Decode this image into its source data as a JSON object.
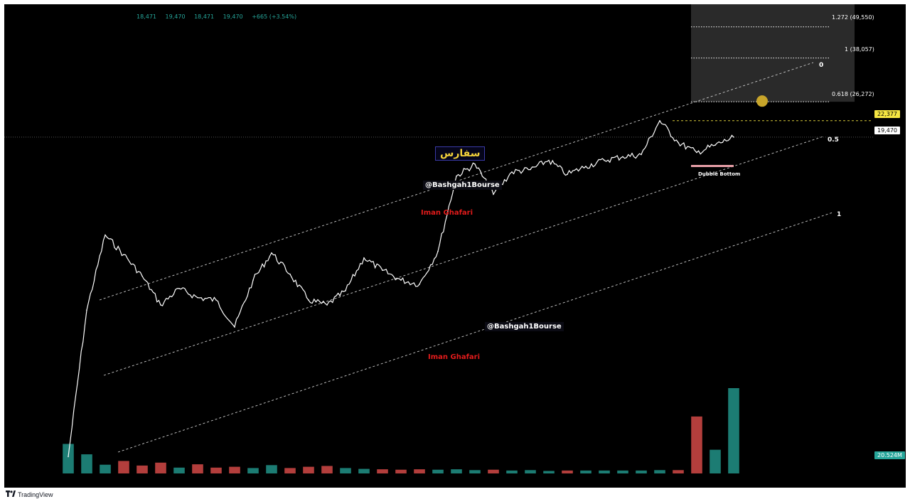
{
  "header": {
    "ohlc": [
      "18,471",
      "19,470",
      "18,471",
      "19,470",
      "+665 (+3.54%)"
    ]
  },
  "price_tags": {
    "high": "22,377",
    "last": "19,470",
    "volume": "20.524M"
  },
  "fib_levels": [
    {
      "label": "1.272 (49,550)"
    },
    {
      "label": "1 (38,057)"
    },
    {
      "label": "0.618 (26,272)"
    }
  ],
  "channel_labels": [
    "0",
    "0.5",
    "1"
  ],
  "annotations": {
    "pattern": "Dubble Bottom"
  },
  "watermarks": {
    "brand": "سفارس",
    "handle": "@Bashgah1Bourse",
    "author": "Iman Ghafari"
  },
  "footer": {
    "logo_icon": "tradingview-logo-icon",
    "brand": "TradingView"
  },
  "colors": {
    "background": "#000000",
    "price_line": "#ffffff",
    "volume_up": "#26a69a",
    "volume_down": "#ef5350",
    "high_tag": "#f5e642",
    "fib_box": "#2a2a2a",
    "target_marker": "#c8a52a"
  },
  "chart_data": {
    "type": "line",
    "title": "",
    "xlabel": "",
    "ylabel": "",
    "y_scale": "log",
    "ylim": [
      1000,
      60000
    ],
    "series": [
      {
        "values": [
          1300,
          4500,
          8500,
          7200,
          6000,
          4700,
          5400,
          5000,
          4900,
          3900,
          5800,
          7300,
          6100,
          4900,
          4700,
          5300,
          7000,
          6300,
          5800,
          5600,
          7400,
          14000,
          15500,
          12000,
          14500,
          14800,
          16000,
          14200,
          15200,
          16000,
          16500,
          16800,
          22377,
          18600,
          17100,
          18200,
          19470
        ]
      },
      {
        "name": "volume",
        "values": [
          7.1,
          4.6,
          2.1,
          3.0,
          1.9,
          2.6,
          1.4,
          2.2,
          1.4,
          1.6,
          1.3,
          2.0,
          1.3,
          1.6,
          1.8,
          1.3,
          1.1,
          1.0,
          0.9,
          1.0,
          0.9,
          1.0,
          0.8,
          0.9,
          0.7,
          0.8,
          0.6,
          0.7,
          0.7,
          0.7,
          0.7,
          0.7,
          0.8,
          0.8,
          13.7,
          5.7,
          20.524
        ]
      }
    ],
    "fibonacci_extension": [
      {
        "ratio": 1.272,
        "price": 49550
      },
      {
        "ratio": 1,
        "price": 38057
      },
      {
        "ratio": 0.618,
        "price": 26272
      }
    ],
    "horizontal_levels": [
      22377,
      19470
    ],
    "channel": {
      "lines": [
        "0",
        "0.5",
        "1"
      ]
    },
    "grid": false
  }
}
